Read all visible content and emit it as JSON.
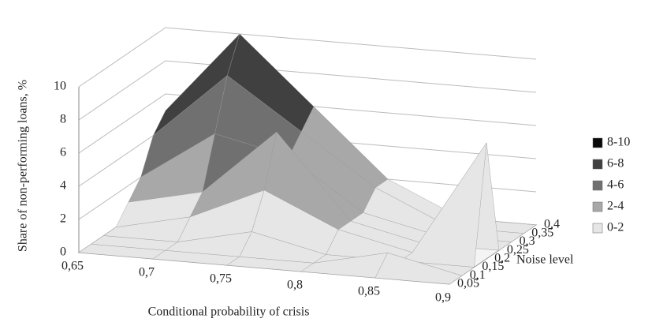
{
  "chart_data": {
    "type": "surface",
    "zlabel": "Share of non-performing loans, %",
    "xlabel": "Conditional probability of crisis",
    "ylabel": "Noise level",
    "categories": [
      "0,65",
      "0,7",
      "0,75",
      "0,8",
      "0,85",
      "0,9"
    ],
    "y_categories": [
      "0,05",
      "0,1",
      "0,15",
      "0,2",
      "0,25",
      "0,3",
      "0,35",
      "0,4"
    ],
    "values": [
      [
        0,
        0,
        0,
        0,
        0,
        0
      ],
      [
        0,
        0,
        0,
        0,
        1,
        0
      ],
      [
        0,
        0,
        1,
        0,
        0,
        0
      ],
      [
        0,
        1,
        3,
        1,
        0,
        7
      ],
      [
        1,
        2,
        6,
        1,
        0,
        0
      ],
      [
        2,
        5,
        4,
        1,
        0,
        0
      ],
      [
        4,
        8,
        5,
        2,
        0,
        0
      ],
      [
        5,
        10,
        6,
        2,
        0,
        0
      ]
    ],
    "zlim": [
      0,
      10
    ],
    "zticks": [
      0,
      2,
      4,
      6,
      8,
      10
    ],
    "grid": true,
    "bands": [
      {
        "name": "8-10",
        "color": "#0a0a0a"
      },
      {
        "name": "6-8",
        "color": "#404040"
      },
      {
        "name": "4-6",
        "color": "#707070"
      },
      {
        "name": "2-4",
        "color": "#a8a8a8"
      },
      {
        "name": "0-2",
        "color": "#e6e6e6"
      }
    ],
    "legend": "right"
  }
}
